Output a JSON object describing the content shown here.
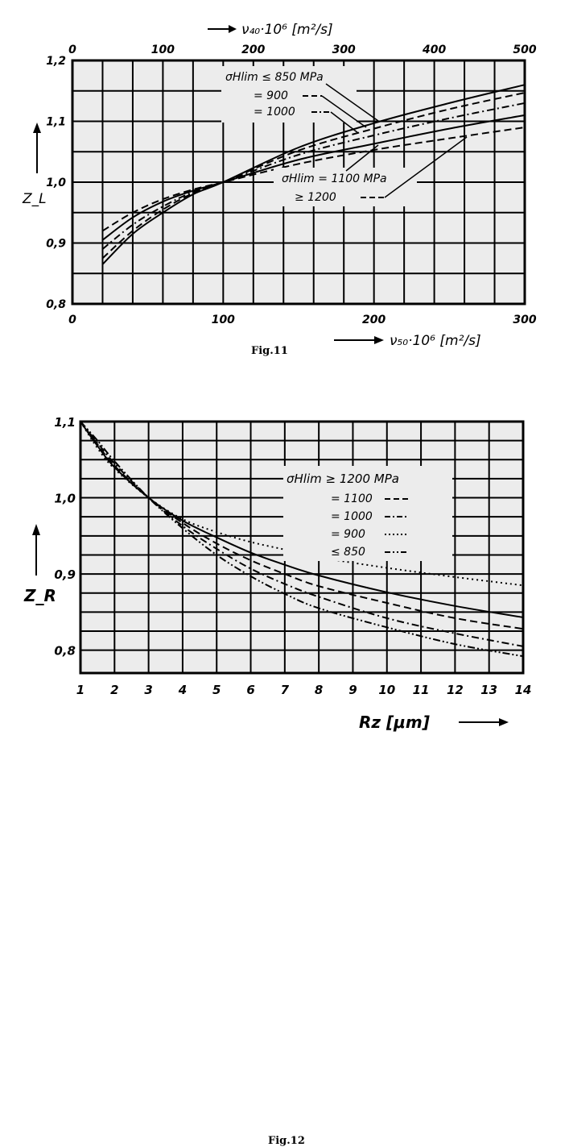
{
  "figures": [
    {
      "caption": "Fig.11",
      "bottom_axis_label": "ν₅₀·10⁶ [m²/s]",
      "top_axis_label": "ν₄₀·10⁶ [m²/s]",
      "y_axis_label": "Z_L",
      "legend_upper": {
        "title": "σHlim ≤ 850 MPa",
        "entries": [
          "= 900",
          "= 1000"
        ]
      },
      "legend_lower": {
        "title": "σHlim = 1100 MPa",
        "entries": [
          "≥ 1200"
        ]
      }
    },
    {
      "caption": "Fig.12",
      "x_axis_label": "Rz [μm]",
      "y_axis_label": "Z_R",
      "legend": {
        "title": "σHlim ≥ 1200 MPa",
        "entries": [
          "= 1100",
          "= 1000",
          "= 900",
          "≤ 850"
        ]
      }
    }
  ],
  "chart_data": [
    {
      "type": "line",
      "xlabel": "ν₅₀·10⁶ [m²/s]",
      "ylabel": "Z_L",
      "xlim": [
        0,
        300
      ],
      "ylim": [
        0.8,
        1.2
      ],
      "x_ticks": [
        0,
        100,
        200,
        300
      ],
      "x_tick_labels": [
        "0",
        "100",
        "200",
        "300"
      ],
      "y_ticks": [
        0.8,
        0.9,
        1.0,
        1.1,
        1.2
      ],
      "y_tick_labels": [
        "0,8",
        "0,9",
        "1,0",
        "1,1",
        "1,2"
      ],
      "secondary_x": {
        "label": "ν₄₀·10⁶ [m²/s]",
        "lim": [
          0,
          500
        ],
        "ticks": [
          0,
          100,
          200,
          300,
          400,
          500
        ],
        "tick_labels": [
          "0",
          "100",
          "200",
          "300",
          "400",
          "500"
        ]
      },
      "grid": true,
      "x": [
        20,
        40,
        60,
        80,
        100,
        150,
        200,
        250,
        300
      ],
      "series": [
        {
          "name": "≤ 850",
          "dash": "solid",
          "values": [
            0.865,
            0.915,
            0.95,
            0.98,
            1.0,
            1.057,
            1.097,
            1.13,
            1.16
          ]
        },
        {
          "name": "= 900",
          "dash": "dashed",
          "values": [
            0.875,
            0.92,
            0.955,
            0.982,
            1.0,
            1.052,
            1.088,
            1.12,
            1.147
          ]
        },
        {
          "name": "= 1000",
          "dash": "dashdot",
          "values": [
            0.89,
            0.93,
            0.96,
            0.984,
            1.0,
            1.045,
            1.077,
            1.105,
            1.13
          ]
        },
        {
          "name": "= 1100",
          "dash": "solid",
          "values": [
            0.905,
            0.942,
            0.968,
            0.986,
            1.0,
            1.037,
            1.063,
            1.088,
            1.11
          ]
        },
        {
          "name": "≥ 1200",
          "dash": "dashed",
          "values": [
            0.92,
            0.95,
            0.972,
            0.988,
            1.0,
            1.03,
            1.053,
            1.072,
            1.09
          ]
        }
      ]
    },
    {
      "type": "line",
      "xlabel": "Rz [μm]",
      "ylabel": "Z_R",
      "xlim": [
        1,
        14
      ],
      "ylim": [
        0.77,
        1.1
      ],
      "x_ticks": [
        1,
        2,
        3,
        4,
        5,
        6,
        7,
        8,
        9,
        10,
        11,
        12,
        13,
        14
      ],
      "x_tick_labels": [
        "1",
        "2",
        "3",
        "4",
        "5",
        "6",
        "7",
        "8",
        "9",
        "10",
        "11",
        "12",
        "13",
        "14"
      ],
      "y_ticks": [
        0.8,
        0.9,
        1.0,
        1.1
      ],
      "y_tick_labels": [
        "0,8",
        "0,9",
        "1,0",
        "1,1"
      ],
      "grid": true,
      "x": [
        1,
        1.5,
        2,
        3,
        4,
        5,
        6,
        7,
        8,
        10,
        12,
        14
      ],
      "series": [
        {
          "name": "≥ 1200",
          "dash": "solid",
          "values": [
            1.1,
            1.068,
            1.04,
            1.0,
            0.97,
            0.948,
            0.928,
            0.912,
            0.898,
            0.876,
            0.858,
            0.843
          ]
        },
        {
          "name": "= 1100",
          "dash": "dashed",
          "values": [
            1.1,
            1.07,
            1.042,
            1.0,
            0.967,
            0.94,
            0.918,
            0.9,
            0.884,
            0.862,
            0.842,
            0.828
          ]
        },
        {
          "name": "= 1000",
          "dash": "dashdot",
          "values": [
            1.1,
            1.072,
            1.045,
            1.0,
            0.963,
            0.933,
            0.907,
            0.887,
            0.87,
            0.842,
            0.822,
            0.805
          ]
        },
        {
          "name": "= 900",
          "dash": "dotted",
          "values": [
            1.1,
            1.065,
            1.038,
            1.0,
            0.972,
            0.955,
            0.942,
            0.932,
            0.922,
            0.908,
            0.896,
            0.885
          ]
        },
        {
          "name": "≤ 850",
          "dash": "dashdotdot",
          "values": [
            1.1,
            1.075,
            1.048,
            1.0,
            0.96,
            0.925,
            0.897,
            0.874,
            0.855,
            0.83,
            0.808,
            0.792
          ]
        }
      ]
    }
  ]
}
